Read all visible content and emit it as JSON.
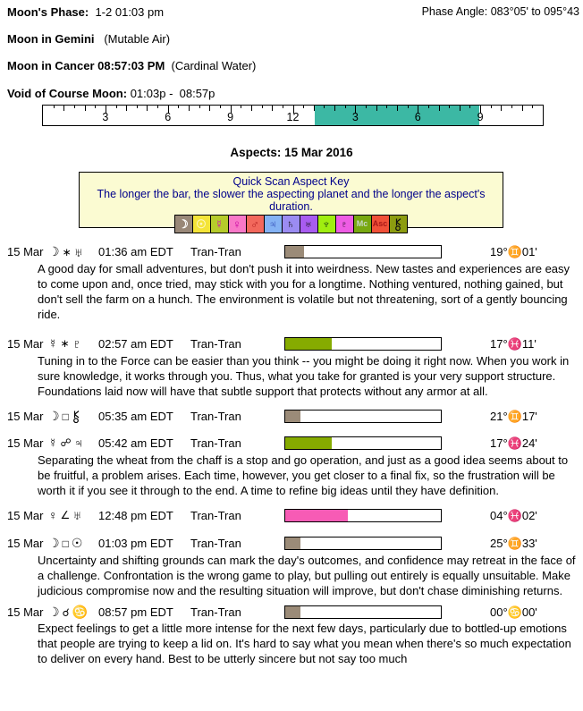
{
  "header": {
    "moons_phase_label": "Moon's Phase:",
    "moons_phase_value": "1-2 01:03 pm",
    "phase_angle_label": "Phase Angle:",
    "phase_angle_value": "083°05' to 095°43",
    "moon_sign_bold": "Moon in Gemini",
    "moon_sign_note": "(Mutable Air)",
    "moon_ingress_bold": "Moon in Cancer 08:57:03 PM",
    "moon_ingress_note": "(Cardinal Water)",
    "voc_label": "Void of Course Moon:",
    "voc_value": "01:03p -  08:57p"
  },
  "timeline": {
    "tick_labels": [
      {
        "hour": 3,
        "label": "3"
      },
      {
        "hour": 6,
        "label": "6"
      },
      {
        "hour": 9,
        "label": "9"
      },
      {
        "hour": 12,
        "label": "12"
      },
      {
        "hour": 15,
        "label": "3"
      },
      {
        "hour": 18,
        "label": "6"
      },
      {
        "hour": 21,
        "label": "9"
      }
    ],
    "fill": {
      "start_pct": 54.4,
      "width_pct": 32.9,
      "color": "#3cb8a4"
    }
  },
  "aspects": {
    "title": "Aspects: 15 Mar 2016",
    "key": {
      "title": "Quick Scan Aspect Key",
      "subtitle": "The longer the bar, the slower the aspecting planet and the longer the aspect's duration.",
      "chips": [
        {
          "name": "moon",
          "glyph": "☽",
          "bg": "#998878",
          "fg": "#ffffff"
        },
        {
          "name": "sun",
          "glyph": "☉",
          "bg": "#f4e438",
          "fg": "#fdf6c0"
        },
        {
          "name": "mercury",
          "glyph": "☿",
          "bg": "#b6cb2b",
          "fg": "#cc00bb"
        },
        {
          "name": "venus",
          "glyph": "♀",
          "bg": "#f878c8",
          "fg": "#c800a0"
        },
        {
          "name": "mars",
          "glyph": "♂",
          "bg": "#f2685c",
          "fg": "#b42020"
        },
        {
          "name": "jupiter",
          "glyph": "♃",
          "bg": "#84b2f4",
          "fg": "#2840b0"
        },
        {
          "name": "saturn",
          "glyph": "♄",
          "bg": "#9b8cf2",
          "fg": "#101010"
        },
        {
          "name": "uranus",
          "glyph": "♅",
          "bg": "#a85cf0",
          "fg": "#101010"
        },
        {
          "name": "neptune",
          "glyph": "♆",
          "bg": "#a0ee10",
          "fg": "#103010"
        },
        {
          "name": "pluto",
          "glyph": "♇",
          "bg": "#ee5ce4",
          "fg": "#301030"
        },
        {
          "name": "mc",
          "glyph": "Mc",
          "bg": "#78a810",
          "fg": "#c8d8c8"
        },
        {
          "name": "asc",
          "glyph": "Asc",
          "bg": "#f05038",
          "fg": "#a81818"
        },
        {
          "name": "chiron",
          "glyph": "chiron",
          "bg": "#8c9c10",
          "fg": "#101010"
        }
      ]
    },
    "rows": [
      {
        "date": "15 Mar",
        "glyphs": [
          {
            "name": "moon",
            "char": "☽",
            "cls": "g"
          },
          {
            "name": "sextile",
            "char": "∗",
            "cls": "ga"
          },
          {
            "name": "uranus",
            "char": "♅",
            "cls": "g"
          }
        ],
        "time": "01:36 am EDT",
        "type": "Tran-Tran",
        "bar": {
          "fill_pct": 12,
          "color": "#9b8b78"
        },
        "position": "19°♊01'",
        "description": "A good day for small adventures, but don't push it into weirdness. New tastes and experiences are easy to come upon and, once tried, may stick with you for a longtime. Nothing ventured, nothing gained, but don't sell the farm on a hunch. The environment is volatile but not threatening, sort of a gently bouncing ride."
      },
      {
        "date": "15 Mar",
        "glyphs": [
          {
            "name": "mercury",
            "char": "☿",
            "cls": "g"
          },
          {
            "name": "sextile",
            "char": "∗",
            "cls": "ga"
          },
          {
            "name": "pluto",
            "char": "♇",
            "cls": "g"
          }
        ],
        "time": "02:57 am EDT",
        "type": "Tran-Tran",
        "bar": {
          "fill_pct": 30,
          "color": "#86ab00"
        },
        "position": "17°♓11'",
        "description": "Tuning in to the Force can be easier than you think -- you might be doing it right now. When you work in sure knowledge, it works through you. Thus, what you take for granted is your very support structure. Foundations laid now will have that subtle support that protects without any armor at all."
      },
      {
        "date": "15 Mar",
        "glyphs": [
          {
            "name": "moon",
            "char": "☽",
            "cls": "g"
          },
          {
            "name": "square",
            "char": "□",
            "cls": "ga"
          },
          {
            "name": "chiron",
            "char": "chiron",
            "cls": "g"
          }
        ],
        "time": "05:35 am EDT",
        "type": "Tran-Tran",
        "bar": {
          "fill_pct": 10,
          "color": "#9b8b78"
        },
        "position": "21°♊17'",
        "description": ""
      },
      {
        "date": "15 Mar",
        "glyphs": [
          {
            "name": "mercury",
            "char": "☿",
            "cls": "g"
          },
          {
            "name": "opposition",
            "char": "☍",
            "cls": "ga"
          },
          {
            "name": "jupiter",
            "char": "♃",
            "cls": "g"
          }
        ],
        "time": "05:42 am EDT",
        "type": "Tran-Tran",
        "bar": {
          "fill_pct": 30,
          "color": "#86ab00"
        },
        "position": "17°♓24'",
        "description": "Separating the wheat from the chaff is a stop and go operation, and just as a good idea seems about to be fruitful, a problem arises. Each time, however, you get closer to a final fix, so the frustration will be worth it if you see it through to the end. A time to refine big ideas until they have definition."
      },
      {
        "date": "15 Mar",
        "glyphs": [
          {
            "name": "venus",
            "char": "♀",
            "cls": "g"
          },
          {
            "name": "semi-square",
            "char": "∠",
            "cls": "ga"
          },
          {
            "name": "uranus",
            "char": "♅",
            "cls": "g"
          }
        ],
        "time": "12:48 pm EDT",
        "type": "Tran-Tran",
        "bar": {
          "fill_pct": 40,
          "color": "#f75bb5"
        },
        "position": "04°♓02'",
        "description": ""
      },
      {
        "date": "15 Mar",
        "glyphs": [
          {
            "name": "moon",
            "char": "☽",
            "cls": "g"
          },
          {
            "name": "square",
            "char": "□",
            "cls": "ga"
          },
          {
            "name": "sun",
            "char": "☉",
            "cls": "g"
          }
        ],
        "time": "01:03 pm EDT",
        "type": "Tran-Tran",
        "bar": {
          "fill_pct": 10,
          "color": "#9b8b78"
        },
        "position": "25°♊33'",
        "description": "Uncertainty and shifting grounds can mark the day's outcomes, and confidence may retreat in the face of a challenge. Confrontation is the wrong game to play, but pulling out entirely is equally unsuitable. Make judicious compromise now and the resulting situation will improve, but don't chase diminishing returns."
      },
      {
        "date": "15 Mar",
        "glyphs": [
          {
            "name": "moon",
            "char": "☽",
            "cls": "g"
          },
          {
            "name": "conjunction",
            "char": "☌",
            "cls": "ga"
          },
          {
            "name": "cancer",
            "char": "♋",
            "cls": "g"
          }
        ],
        "time": "08:57 pm EDT",
        "type": "Tran-Tran",
        "bar": {
          "fill_pct": 10,
          "color": "#9b8b78"
        },
        "position": "00°♋00'",
        "description": "Expect feelings to get a little more intense for the next few days, particularly due to bottled-up emotions that people are trying to keep a lid on. It's hard to say what you mean when there's so much expectation to deliver on every hand. Best to be utterly sincere but not say too much"
      }
    ]
  }
}
